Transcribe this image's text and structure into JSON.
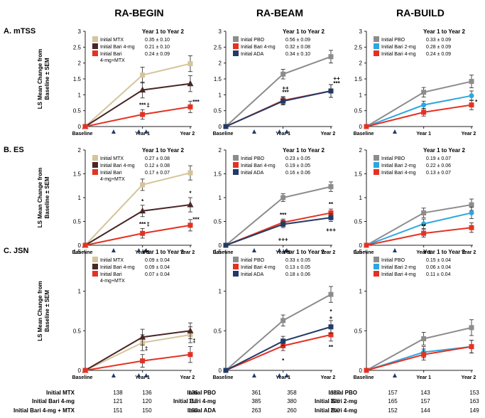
{
  "columns": [
    "RA-BEGIN",
    "RA-BEAM",
    "RA-BUILD"
  ],
  "rows": [
    {
      "label": "A. mTSS"
    },
    {
      "label": "B. ES"
    },
    {
      "label": "C. JSN"
    }
  ],
  "ylabel_lines": [
    "LS Mean Change from",
    "Baseline ± SEM"
  ],
  "xtick_labels": [
    "Baseline",
    "Year 1",
    "Year 2"
  ],
  "colors": {
    "mtx": "#d6c49a",
    "bari4mtx_dark": "#4a2626",
    "bari_red": "#e43222",
    "pbo": "#8c8c8c",
    "ada": "#223a66",
    "bari2": "#2ea6df",
    "arrow": "#223a66",
    "axis": "#222222"
  },
  "chart_data": [
    {
      "type": "line",
      "id": "begin_mtss",
      "title": "RA-BEGIN",
      "row_label": "A. mTSS",
      "ylim": [
        0,
        3
      ],
      "yticks": [
        0,
        0.5,
        1,
        1.5,
        2,
        2.5,
        3
      ],
      "x": [
        "Baseline",
        "Year 1",
        "Year 2"
      ],
      "legend_title": "Year 1 to Year 2",
      "series": [
        {
          "name": "Initial MTX",
          "color": "#d6c49a",
          "marker": "square",
          "values": [
            0,
            1.62,
            1.98
          ],
          "err": [
            0,
            0.25,
            0.25
          ],
          "stat": "0.35 ± 0.10"
        },
        {
          "name": "Initial Bari 4-mg",
          "color": "#4a2626",
          "marker": "triangle",
          "values": [
            0,
            1.15,
            1.35
          ],
          "err": [
            0,
            0.25,
            0.25
          ],
          "stat": "0.21 ± 0.10"
        },
        {
          "name": "Initial Bari 4-mg+MTX",
          "name_lines": [
            "Initial Bari",
            "4-mg+MTX"
          ],
          "color": "#e43222",
          "marker": "square",
          "values": [
            0,
            0.38,
            0.62
          ],
          "err": [
            0,
            0.15,
            0.18
          ],
          "stat": "0.24 ± 0.09"
        }
      ],
      "annotations": [
        {
          "text": "***",
          "x": 1,
          "y": 0.62
        },
        {
          "text": "‡",
          "x": 1.12,
          "y": 0.62
        },
        {
          "text": "***",
          "x": 2.12,
          "y": 0.72
        }
      ]
    },
    {
      "type": "line",
      "id": "beam_mtss",
      "title": "RA-BEAM",
      "row_label": "A. mTSS",
      "ylim": [
        0,
        3
      ],
      "yticks": [
        0,
        0.5,
        1,
        1.5,
        2,
        2.5,
        3
      ],
      "x": [
        "Baseline",
        "Year 1",
        "Year 2"
      ],
      "legend_title": "Year 1 to Year 2",
      "series": [
        {
          "name": "Initial PBO",
          "color": "#8c8c8c",
          "marker": "square",
          "values": [
            0,
            1.65,
            2.2
          ],
          "err": [
            0,
            0.15,
            0.2
          ],
          "stat": "0.56 ± 0.09"
        },
        {
          "name": "Initial Bari 4-mg",
          "color": "#e43222",
          "marker": "square",
          "values": [
            0,
            0.82,
            1.12
          ],
          "err": [
            0,
            0.12,
            0.2
          ],
          "stat": "0.32 ± 0.08"
        },
        {
          "name": "Initial ADA",
          "color": "#223a66",
          "marker": "square",
          "values": [
            0,
            0.8,
            1.12
          ],
          "err": [
            0,
            0.12,
            0.2
          ],
          "stat": "0.34 ± 0.10"
        }
      ],
      "annotations": [
        {
          "text": "++",
          "x": 1.05,
          "y": 1.15
        },
        {
          "text": "***",
          "x": 1.05,
          "y": 1.02
        },
        {
          "text": "++",
          "x": 2.12,
          "y": 1.45
        },
        {
          "text": "***",
          "x": 2.12,
          "y": 1.3
        }
      ]
    },
    {
      "type": "line",
      "id": "build_mtss",
      "title": "RA-BUILD",
      "row_label": "A. mTSS",
      "ylim": [
        0,
        3
      ],
      "yticks": [
        0,
        0.5,
        1,
        1.5,
        2,
        2.5,
        3
      ],
      "x": [
        "Baseline",
        "Year 1",
        "Year 2"
      ],
      "legend_title": "Year 1 to Year 2",
      "series": [
        {
          "name": "Initial PBO",
          "color": "#8c8c8c",
          "marker": "square",
          "values": [
            0,
            1.08,
            1.42
          ],
          "err": [
            0,
            0.15,
            0.2
          ],
          "stat": "0.33 ± 0.09"
        },
        {
          "name": "Initial Bari 2-mg",
          "color": "#2ea6df",
          "marker": "circle",
          "values": [
            0,
            0.68,
            0.97
          ],
          "err": [
            0,
            0.12,
            0.15
          ],
          "stat": "0.28 ± 0.09"
        },
        {
          "name": "Initial Bari 4-mg",
          "color": "#e43222",
          "marker": "square",
          "values": [
            0,
            0.45,
            0.68
          ],
          "err": [
            0,
            0.12,
            0.15
          ],
          "stat": "0.24 ± 0.09"
        }
      ],
      "annotations": [
        {
          "text": "*",
          "x": 2.1,
          "y": 0.72
        }
      ]
    },
    {
      "type": "line",
      "id": "begin_es",
      "title": "RA-BEGIN",
      "row_label": "B. ES",
      "ylim": [
        0,
        2
      ],
      "yticks": [
        0,
        0.5,
        1,
        1.5,
        2
      ],
      "x": [
        "Baseline",
        "Year 1",
        "Year 2"
      ],
      "legend_title": "Year 1 to Year 2",
      "series": [
        {
          "name": "Initial MTX",
          "color": "#d6c49a",
          "marker": "square",
          "values": [
            0,
            1.27,
            1.52
          ],
          "err": [
            0,
            0.12,
            0.15
          ],
          "stat": "0.27 ± 0.08"
        },
        {
          "name": "Initial Bari 4-mg",
          "color": "#4a2626",
          "marker": "triangle",
          "values": [
            0,
            0.72,
            0.85
          ],
          "err": [
            0,
            0.12,
            0.15
          ],
          "stat": "0.12 ± 0.08"
        },
        {
          "name": "Initial Bari 4-mg+MTX",
          "name_lines": [
            "Initial Bari",
            "4-mg+MTX"
          ],
          "color": "#e43222",
          "marker": "square",
          "values": [
            0,
            0.25,
            0.42
          ],
          "err": [
            0,
            0.1,
            0.12
          ],
          "stat": "0.17 ± 0.07"
        }
      ],
      "annotations": [
        {
          "text": "*",
          "x": 1,
          "y": 0.88
        },
        {
          "text": "***",
          "x": 1,
          "y": 0.4
        },
        {
          "text": "‡",
          "x": 1.12,
          "y": 0.4
        },
        {
          "text": "*",
          "x": 2,
          "y": 1.05
        },
        {
          "text": "***",
          "x": 2.12,
          "y": 0.5
        }
      ]
    },
    {
      "type": "line",
      "id": "beam_es",
      "title": "RA-BEAM",
      "row_label": "B. ES",
      "ylim": [
        0,
        2
      ],
      "yticks": [
        0,
        0.5,
        1,
        1.5,
        2
      ],
      "x": [
        "Baseline",
        "Year 1",
        "Year 2"
      ],
      "legend_title": "Year 1 to Year 2",
      "series": [
        {
          "name": "Initial PBO",
          "color": "#8c8c8c",
          "marker": "square",
          "values": [
            0,
            1.0,
            1.23
          ],
          "err": [
            0,
            0.08,
            0.1
          ],
          "stat": "0.23 ± 0.05"
        },
        {
          "name": "Initial Bari 4-mg",
          "color": "#e43222",
          "marker": "square",
          "values": [
            0,
            0.48,
            0.68
          ],
          "err": [
            0,
            0.07,
            0.08
          ],
          "stat": "0.19 ± 0.05"
        },
        {
          "name": "Initial ADA",
          "color": "#223a66",
          "marker": "square",
          "values": [
            0,
            0.44,
            0.58
          ],
          "err": [
            0,
            0.07,
            0.08
          ],
          "stat": "0.16 ± 0.06"
        }
      ],
      "annotations": [
        {
          "text": "***",
          "x": 1,
          "y": 0.6
        },
        {
          "text": "+++",
          "x": 1,
          "y": 0.08
        },
        {
          "text": "**",
          "x": 2,
          "y": 0.82
        },
        {
          "text": "+++",
          "x": 2,
          "y": 0.28
        }
      ]
    },
    {
      "type": "line",
      "id": "build_es",
      "title": "RA-BUILD",
      "row_label": "B. ES",
      "ylim": [
        0,
        2
      ],
      "yticks": [
        0,
        0.5,
        1,
        1.5,
        2
      ],
      "x": [
        "Baseline",
        "Year 1",
        "Year 2"
      ],
      "legend_title": "Year 1 to Year 2",
      "series": [
        {
          "name": "Initial PBO",
          "color": "#8c8c8c",
          "marker": "square",
          "values": [
            0,
            0.68,
            0.85
          ],
          "err": [
            0,
            0.1,
            0.12
          ],
          "stat": "0.19 ± 0.07"
        },
        {
          "name": "Initial Bari 2-mg",
          "color": "#2ea6df",
          "marker": "circle",
          "values": [
            0,
            0.45,
            0.68
          ],
          "err": [
            0,
            0.1,
            0.12
          ],
          "stat": "0.22 ± 0.06"
        },
        {
          "name": "Initial Bari 4-mg",
          "color": "#e43222",
          "marker": "square",
          "values": [
            0,
            0.25,
            0.37
          ],
          "err": [
            0,
            0.08,
            0.1
          ],
          "stat": "0.13 ± 0.07"
        }
      ],
      "annotations": [
        {
          "text": "**",
          "x": 1,
          "y": 0.36
        }
      ]
    },
    {
      "type": "line",
      "id": "begin_jsn",
      "title": "RA-BEGIN",
      "row_label": "C. JSN",
      "ylim": [
        0,
        1.5
      ],
      "yticks": [
        0,
        0.5,
        1,
        1.5
      ],
      "x": [
        "Baseline",
        "Year 1",
        "Year 2"
      ],
      "legend_title": "Year 1 to Year 2",
      "series": [
        {
          "name": "Initial MTX",
          "color": "#d6c49a",
          "marker": "square",
          "values": [
            0,
            0.35,
            0.45
          ],
          "err": [
            0,
            0.1,
            0.1
          ],
          "stat": "0.09 ± 0.04"
        },
        {
          "name": "Initial Bari 4-mg",
          "color": "#4a2626",
          "marker": "triangle",
          "values": [
            0,
            0.42,
            0.5
          ],
          "err": [
            0,
            0.1,
            0.1
          ],
          "stat": "0.09 ± 0.04"
        },
        {
          "name": "Initial Bari 4-mg+MTX",
          "name_lines": [
            "Initial Bari",
            "4-mg+MTX"
          ],
          "color": "#e43222",
          "marker": "square",
          "values": [
            0,
            0.12,
            0.2
          ],
          "err": [
            0,
            0.08,
            0.1
          ],
          "stat": "0.07 ± 0.04"
        }
      ],
      "annotations": [
        {
          "text": "‡",
          "x": 1.08,
          "y": 0.25
        },
        {
          "text": "‡",
          "x": 2.08,
          "y": 0.35
        }
      ]
    },
    {
      "type": "line",
      "id": "beam_jsn",
      "title": "RA-BEAM",
      "row_label": "C. JSN",
      "ylim": [
        0,
        1.5
      ],
      "yticks": [
        0,
        0.5,
        1,
        1.5
      ],
      "x": [
        "Baseline",
        "Year 1",
        "Year 2"
      ],
      "legend_title": "Year 1 to Year 2",
      "series": [
        {
          "name": "Initial PBO",
          "color": "#8c8c8c",
          "marker": "square",
          "values": [
            0,
            0.63,
            0.96
          ],
          "err": [
            0,
            0.07,
            0.1
          ],
          "stat": "0.33 ± 0.05"
        },
        {
          "name": "Initial Bari 4-mg",
          "color": "#e43222",
          "marker": "square",
          "values": [
            0,
            0.31,
            0.45
          ],
          "err": [
            0,
            0.06,
            0.08
          ],
          "stat": "0.13 ± 0.05"
        },
        {
          "name": "Initial ADA",
          "color": "#223a66",
          "marker": "square",
          "values": [
            0,
            0.37,
            0.55
          ],
          "err": [
            0,
            0.06,
            0.08
          ],
          "stat": "0.18 ± 0.06"
        }
      ],
      "annotations": [
        {
          "text": "*",
          "x": 1,
          "y": 0.1
        },
        {
          "text": "*",
          "x": 2,
          "y": 0.72
        },
        {
          "text": "+",
          "x": 2,
          "y": 0.64
        },
        {
          "text": "**",
          "x": 2,
          "y": 0.27
        }
      ]
    },
    {
      "type": "line",
      "id": "build_jsn",
      "title": "RA-BUILD",
      "row_label": "C. JSN",
      "ylim": [
        0,
        1.5
      ],
      "yticks": [
        0,
        0.5,
        1,
        1.5
      ],
      "x": [
        "Baseline",
        "Year 1",
        "Year 2"
      ],
      "legend_title": "Year 1 to Year 2",
      "series": [
        {
          "name": "Initial PBO",
          "color": "#8c8c8c",
          "marker": "square",
          "values": [
            0,
            0.4,
            0.54
          ],
          "err": [
            0,
            0.08,
            0.1
          ],
          "stat": "0.15 ± 0.04"
        },
        {
          "name": "Initial Bari 2-mg",
          "color": "#2ea6df",
          "marker": "circle",
          "values": [
            0,
            0.23,
            0.3
          ],
          "err": [
            0,
            0.07,
            0.08
          ],
          "stat": "0.06 ± 0.04"
        },
        {
          "name": "Initial Bari 4-mg",
          "color": "#e43222",
          "marker": "square",
          "values": [
            0,
            0.2,
            0.3
          ],
          "err": [
            0,
            0.07,
            0.08
          ],
          "stat": "0.11 ± 0.04"
        }
      ],
      "annotations": []
    }
  ],
  "n_tables": [
    {
      "study": "RA-BEGIN",
      "rows": [
        {
          "label": "Initial MTX",
          "values": [
            138,
            136,
            136
          ]
        },
        {
          "label": "Initial Bari 4-mg",
          "values": [
            121,
            120,
            117
          ]
        },
        {
          "label": "Initial Bari 4-mg + MTX",
          "values": [
            151,
            150,
            150
          ]
        }
      ]
    },
    {
      "study": "RA-BEAM",
      "rows": [
        {
          "label": "Initial PBO",
          "values": [
            361,
            358,
            357
          ]
        },
        {
          "label": "Initial Bari 4-mg",
          "values": [
            385,
            380,
            376
          ]
        },
        {
          "label": "Initial ADA",
          "values": [
            263,
            260,
            260
          ]
        }
      ]
    },
    {
      "study": "RA-BUILD",
      "rows": [
        {
          "label": "Initial PBO",
          "values": [
            157,
            143,
            153
          ]
        },
        {
          "label": "Initial Bari 2-mg",
          "values": [
            165,
            157,
            163
          ]
        },
        {
          "label": "Initial Bari 4-mg",
          "values": [
            152,
            144,
            149
          ]
        }
      ]
    }
  ]
}
